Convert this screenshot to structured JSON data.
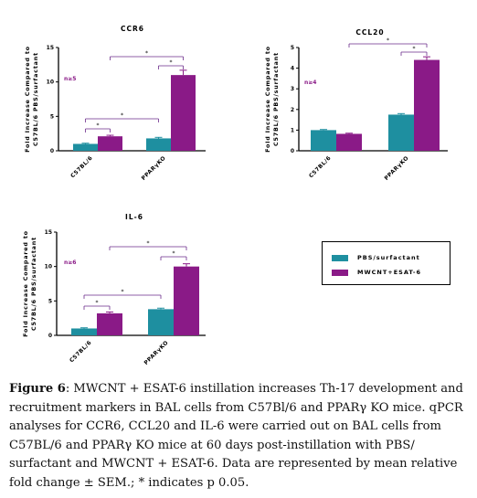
{
  "colors": {
    "teal": "#1e8fa0",
    "purple": "#8a1a87",
    "sig_line": "#6a2a8a",
    "axis": "#000000"
  },
  "legend": {
    "items": [
      {
        "label": "PBS/surfactant",
        "color": "#1e8fa0"
      },
      {
        "label": "MWCNT+ESAT-6",
        "color": "#8a1a87"
      }
    ]
  },
  "chart_data": [
    {
      "type": "bar",
      "title": "CCR6",
      "ylabel": "Fold Increase Compared to C57BL/6 PBS/surfactant",
      "n_label": "n≥5",
      "categories": [
        "C57BL/6",
        "PPARγKO"
      ],
      "ylim": [
        0,
        15
      ],
      "yticks": [
        "0",
        "5",
        "10",
        "15"
      ],
      "series": [
        {
          "name": "PBS/surfactant",
          "values": [
            1.0,
            1.8
          ],
          "errors": [
            0.1,
            0.15
          ]
        },
        {
          "name": "MWCNT+ESAT-6",
          "values": [
            2.1,
            11.0
          ],
          "errors": [
            0.15,
            0.7
          ]
        }
      ],
      "significance": [
        "*",
        "*",
        "*",
        "*"
      ]
    },
    {
      "type": "bar",
      "title": "CCL20",
      "ylabel": "Fold Increase Compared to C57BL/6 PBS/surfactant",
      "n_label": "n≥4",
      "categories": [
        "C57BL/6",
        "PPARγKO"
      ],
      "ylim": [
        0,
        5
      ],
      "yticks": [
        "0",
        "1",
        "2",
        "3",
        "4",
        "5"
      ],
      "series": [
        {
          "name": "PBS/surfactant",
          "values": [
            1.0,
            1.75
          ],
          "errors": [
            0.03,
            0.05
          ]
        },
        {
          "name": "MWCNT+ESAT-6",
          "values": [
            0.82,
            4.4
          ],
          "errors": [
            0.03,
            0.15
          ]
        }
      ],
      "significance": [
        "*",
        "*"
      ]
    },
    {
      "type": "bar",
      "title": "IL-6",
      "ylabel": "Fold Increase Compared to C57BL/6 PBS/surfactant",
      "n_label": "n≥6",
      "categories": [
        "C57BL/6",
        "PPARγKO"
      ],
      "ylim": [
        0,
        15
      ],
      "yticks": [
        "0",
        "5",
        "10",
        "15"
      ],
      "series": [
        {
          "name": "PBS/surfactant",
          "values": [
            1.0,
            3.8
          ],
          "errors": [
            0.1,
            0.15
          ]
        },
        {
          "name": "MWCNT+ESAT-6",
          "values": [
            3.2,
            10.0
          ],
          "errors": [
            0.2,
            0.4
          ]
        }
      ],
      "significance": [
        "*",
        "*",
        "*",
        "*"
      ]
    }
  ],
  "caption": {
    "figure_label": "Figure 6",
    "text": ": MWCNT + ESAT-6 instillation increases Th-17 development and recruitment markers in BAL cells from C57Bl/6 and PPARγ KO mice. qPCR analyses for CCR6, CCL20 and IL-6 were carried out on BAL cells from C57BL/6 and PPARγ KO mice at 60 days post-instillation with PBS/ surfactant and MWCNT + ESAT-6. Data are represented by mean relative fold change ± SEM.; * indicates p  0.05."
  }
}
